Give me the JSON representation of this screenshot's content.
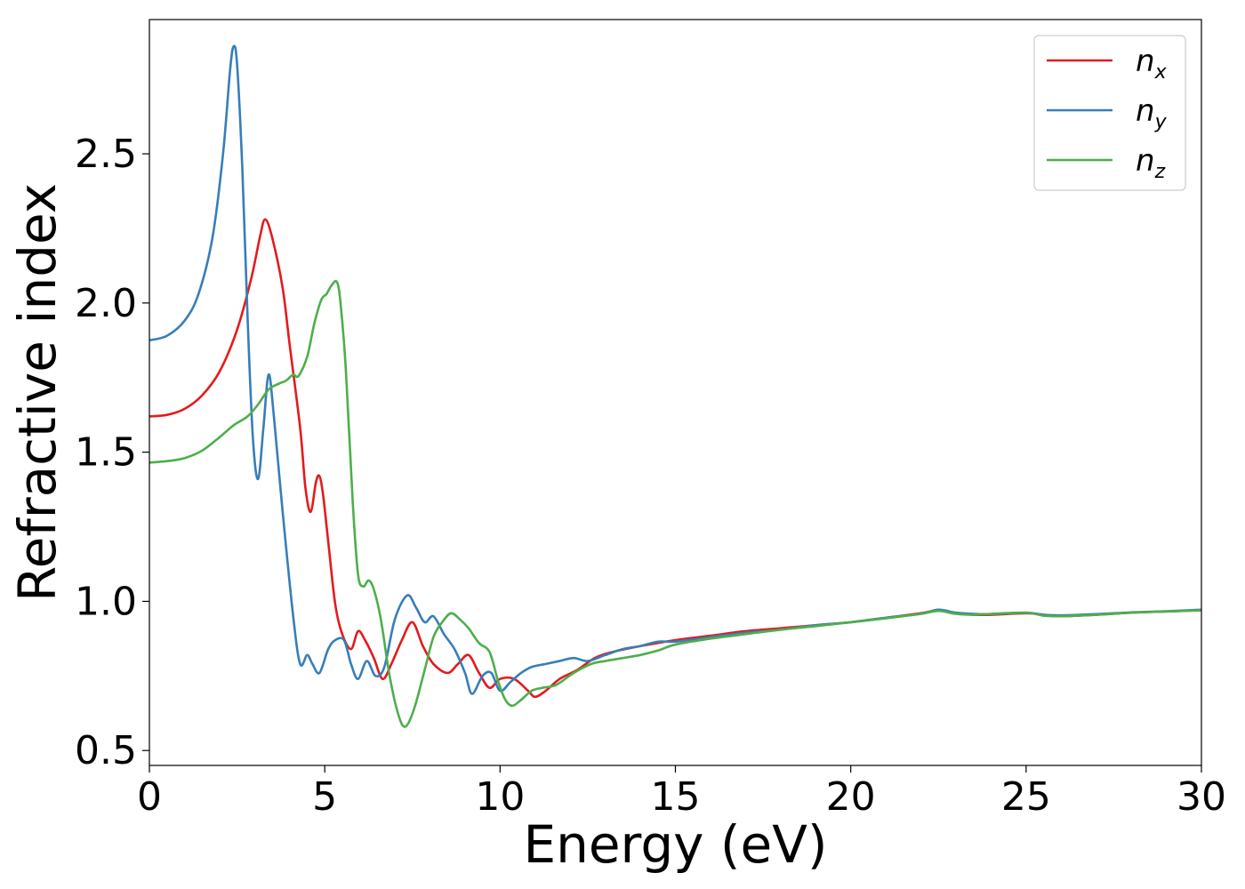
{
  "chart_data": {
    "type": "line",
    "xlabel": "Energy (eV)",
    "ylabel": "Refractive index",
    "xlim": [
      0,
      30
    ],
    "ylim": [
      0.45,
      2.95
    ],
    "x_ticks": [
      0,
      5,
      10,
      15,
      20,
      25,
      30
    ],
    "x_tick_labels": [
      "0",
      "5",
      "10",
      "15",
      "20",
      "25",
      "30"
    ],
    "y_ticks": [
      0.5,
      1.0,
      1.5,
      2.0,
      2.5
    ],
    "y_tick_labels": [
      "0.5",
      "1.0",
      "1.5",
      "2.0",
      "2.5"
    ],
    "grid": false,
    "legend_position": "top-right",
    "series": [
      {
        "name": "n_x",
        "label_base": "n",
        "label_sub": "x",
        "color": "#e41a1c",
        "points": [
          [
            0,
            1.62
          ],
          [
            0.5,
            1.625
          ],
          [
            1.0,
            1.645
          ],
          [
            1.5,
            1.69
          ],
          [
            2.0,
            1.77
          ],
          [
            2.5,
            1.91
          ],
          [
            2.9,
            2.08
          ],
          [
            3.15,
            2.22
          ],
          [
            3.3,
            2.28
          ],
          [
            3.5,
            2.22
          ],
          [
            3.8,
            2.05
          ],
          [
            4.0,
            1.86
          ],
          [
            4.3,
            1.58
          ],
          [
            4.45,
            1.38
          ],
          [
            4.6,
            1.3
          ],
          [
            4.75,
            1.4
          ],
          [
            4.85,
            1.42
          ],
          [
            4.95,
            1.36
          ],
          [
            5.1,
            1.2
          ],
          [
            5.3,
            0.99
          ],
          [
            5.5,
            0.89
          ],
          [
            5.75,
            0.84
          ],
          [
            5.95,
            0.9
          ],
          [
            6.15,
            0.87
          ],
          [
            6.4,
            0.81
          ],
          [
            6.65,
            0.74
          ],
          [
            6.9,
            0.79
          ],
          [
            7.2,
            0.87
          ],
          [
            7.5,
            0.93
          ],
          [
            7.8,
            0.85
          ],
          [
            8.1,
            0.79
          ],
          [
            8.5,
            0.76
          ],
          [
            8.8,
            0.79
          ],
          [
            9.1,
            0.82
          ],
          [
            9.4,
            0.76
          ],
          [
            9.7,
            0.71
          ],
          [
            10.0,
            0.74
          ],
          [
            10.4,
            0.74
          ],
          [
            10.8,
            0.7
          ],
          [
            11.0,
            0.68
          ],
          [
            11.3,
            0.7
          ],
          [
            11.7,
            0.74
          ],
          [
            12.2,
            0.77
          ],
          [
            12.7,
            0.81
          ],
          [
            13.2,
            0.83
          ],
          [
            14.0,
            0.85
          ],
          [
            15.0,
            0.87
          ],
          [
            16.0,
            0.885
          ],
          [
            17.0,
            0.9
          ],
          [
            18.0,
            0.91
          ],
          [
            19.0,
            0.92
          ],
          [
            20.0,
            0.93
          ],
          [
            21.0,
            0.945
          ],
          [
            22.0,
            0.96
          ],
          [
            22.5,
            0.97
          ],
          [
            23.0,
            0.96
          ],
          [
            23.5,
            0.955
          ],
          [
            24.0,
            0.955
          ],
          [
            25.0,
            0.96
          ],
          [
            25.5,
            0.955
          ],
          [
            26.0,
            0.95
          ],
          [
            27.0,
            0.955
          ],
          [
            28.0,
            0.962
          ],
          [
            29.0,
            0.966
          ],
          [
            30.0,
            0.97
          ]
        ]
      },
      {
        "name": "n_y",
        "label_base": "n",
        "label_sub": "y",
        "color": "#377eb8",
        "points": [
          [
            0,
            1.875
          ],
          [
            0.5,
            1.89
          ],
          [
            1.0,
            1.94
          ],
          [
            1.4,
            2.03
          ],
          [
            1.8,
            2.22
          ],
          [
            2.1,
            2.5
          ],
          [
            2.3,
            2.78
          ],
          [
            2.4,
            2.86
          ],
          [
            2.5,
            2.8
          ],
          [
            2.65,
            2.45
          ],
          [
            2.8,
            1.95
          ],
          [
            2.95,
            1.55
          ],
          [
            3.1,
            1.41
          ],
          [
            3.25,
            1.58
          ],
          [
            3.4,
            1.76
          ],
          [
            3.55,
            1.62
          ],
          [
            3.8,
            1.3
          ],
          [
            4.1,
            0.95
          ],
          [
            4.3,
            0.79
          ],
          [
            4.5,
            0.82
          ],
          [
            4.65,
            0.79
          ],
          [
            4.85,
            0.76
          ],
          [
            5.1,
            0.84
          ],
          [
            5.3,
            0.87
          ],
          [
            5.55,
            0.87
          ],
          [
            5.75,
            0.79
          ],
          [
            5.95,
            0.74
          ],
          [
            6.2,
            0.8
          ],
          [
            6.45,
            0.75
          ],
          [
            6.7,
            0.78
          ],
          [
            7.0,
            0.94
          ],
          [
            7.35,
            1.02
          ],
          [
            7.6,
            0.98
          ],
          [
            7.85,
            0.93
          ],
          [
            8.1,
            0.95
          ],
          [
            8.4,
            0.89
          ],
          [
            8.7,
            0.84
          ],
          [
            9.0,
            0.76
          ],
          [
            9.2,
            0.69
          ],
          [
            9.5,
            0.75
          ],
          [
            9.75,
            0.76
          ],
          [
            10.0,
            0.7
          ],
          [
            10.3,
            0.73
          ],
          [
            10.6,
            0.76
          ],
          [
            10.9,
            0.78
          ],
          [
            11.3,
            0.79
          ],
          [
            11.7,
            0.8
          ],
          [
            12.1,
            0.81
          ],
          [
            12.5,
            0.8
          ],
          [
            13.0,
            0.82
          ],
          [
            13.5,
            0.84
          ],
          [
            14.0,
            0.85
          ],
          [
            14.5,
            0.865
          ],
          [
            15.0,
            0.865
          ],
          [
            16.0,
            0.88
          ],
          [
            17.0,
            0.895
          ],
          [
            18.0,
            0.905
          ],
          [
            19.0,
            0.92
          ],
          [
            20.0,
            0.93
          ],
          [
            21.0,
            0.945
          ],
          [
            22.0,
            0.958
          ],
          [
            22.5,
            0.972
          ],
          [
            23.0,
            0.962
          ],
          [
            23.5,
            0.958
          ],
          [
            24.0,
            0.957
          ],
          [
            25.0,
            0.962
          ],
          [
            25.5,
            0.955
          ],
          [
            26.0,
            0.953
          ],
          [
            27.0,
            0.957
          ],
          [
            28.0,
            0.963
          ],
          [
            29.0,
            0.967
          ],
          [
            30.0,
            0.972
          ]
        ]
      },
      {
        "name": "n_z",
        "label_base": "n",
        "label_sub": "z",
        "color": "#4daf4a",
        "points": [
          [
            0,
            1.465
          ],
          [
            0.5,
            1.47
          ],
          [
            1.0,
            1.48
          ],
          [
            1.5,
            1.505
          ],
          [
            2.0,
            1.55
          ],
          [
            2.4,
            1.59
          ],
          [
            2.8,
            1.62
          ],
          [
            3.1,
            1.66
          ],
          [
            3.4,
            1.71
          ],
          [
            3.7,
            1.73
          ],
          [
            3.9,
            1.74
          ],
          [
            4.1,
            1.76
          ],
          [
            4.25,
            1.755
          ],
          [
            4.5,
            1.82
          ],
          [
            4.7,
            1.93
          ],
          [
            4.9,
            2.01
          ],
          [
            5.05,
            2.03
          ],
          [
            5.2,
            2.06
          ],
          [
            5.35,
            2.07
          ],
          [
            5.45,
            2.0
          ],
          [
            5.6,
            1.78
          ],
          [
            5.8,
            1.33
          ],
          [
            5.95,
            1.09
          ],
          [
            6.1,
            1.05
          ],
          [
            6.25,
            1.07
          ],
          [
            6.4,
            1.04
          ],
          [
            6.6,
            0.94
          ],
          [
            6.85,
            0.75
          ],
          [
            7.1,
            0.62
          ],
          [
            7.3,
            0.58
          ],
          [
            7.55,
            0.64
          ],
          [
            7.85,
            0.77
          ],
          [
            8.1,
            0.88
          ],
          [
            8.35,
            0.93
          ],
          [
            8.6,
            0.96
          ],
          [
            8.85,
            0.94
          ],
          [
            9.1,
            0.91
          ],
          [
            9.4,
            0.86
          ],
          [
            9.7,
            0.83
          ],
          [
            9.95,
            0.73
          ],
          [
            10.15,
            0.67
          ],
          [
            10.35,
            0.65
          ],
          [
            10.6,
            0.67
          ],
          [
            10.9,
            0.7
          ],
          [
            11.2,
            0.71
          ],
          [
            11.6,
            0.72
          ],
          [
            12.1,
            0.76
          ],
          [
            12.6,
            0.79
          ],
          [
            13.0,
            0.8
          ],
          [
            13.5,
            0.81
          ],
          [
            14.0,
            0.82
          ],
          [
            14.5,
            0.835
          ],
          [
            15.0,
            0.855
          ],
          [
            16.0,
            0.875
          ],
          [
            17.0,
            0.89
          ],
          [
            18.0,
            0.905
          ],
          [
            19.0,
            0.917
          ],
          [
            20.0,
            0.93
          ],
          [
            21.0,
            0.943
          ],
          [
            22.0,
            0.958
          ],
          [
            22.5,
            0.968
          ],
          [
            23.0,
            0.958
          ],
          [
            23.5,
            0.955
          ],
          [
            24.0,
            0.958
          ],
          [
            25.0,
            0.962
          ],
          [
            25.5,
            0.952
          ],
          [
            26.0,
            0.95
          ],
          [
            27.0,
            0.955
          ],
          [
            28.0,
            0.962
          ],
          [
            29.0,
            0.966
          ],
          [
            30.0,
            0.97
          ]
        ]
      }
    ]
  }
}
